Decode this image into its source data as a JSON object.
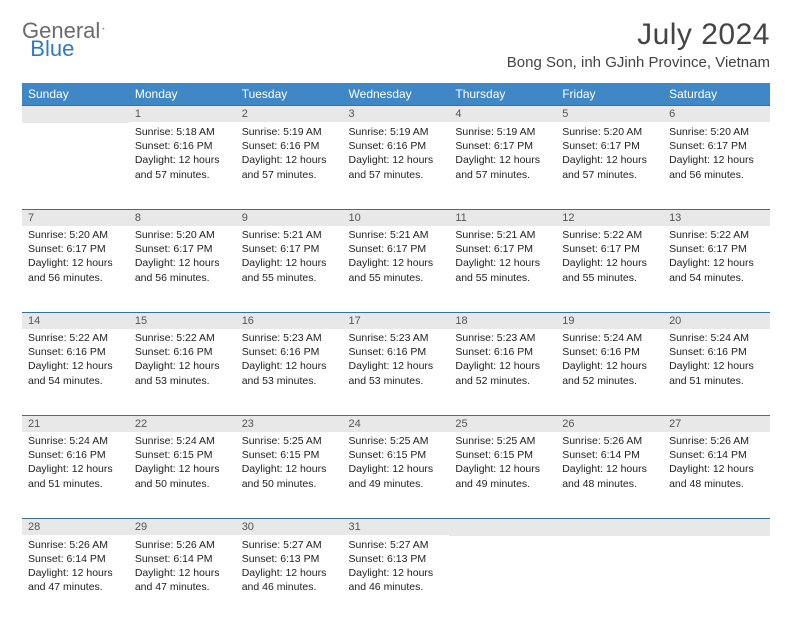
{
  "brand": {
    "part1": "General",
    "part2": "Blue"
  },
  "title": "July 2024",
  "location": "Bong Son, inh GJinh Province, Vietnam",
  "colors": {
    "header_bg": "#3f88c5",
    "header_fg": "#ffffff",
    "row_divider": "#3b6fa0",
    "daynum_bg": "#e8e8e8",
    "daynum_fg": "#555555",
    "text": "#222222",
    "title_fg": "#444444",
    "logo_gray": "#6b6b6b",
    "logo_blue": "#2f7bbf"
  },
  "weekdays": [
    "Sunday",
    "Monday",
    "Tuesday",
    "Wednesday",
    "Thursday",
    "Friday",
    "Saturday"
  ],
  "first_weekday_index": 1,
  "days_in_month": 31,
  "days": {
    "1": {
      "sunrise": "5:18 AM",
      "sunset": "6:16 PM",
      "daylight": "12 hours and 57 minutes."
    },
    "2": {
      "sunrise": "5:19 AM",
      "sunset": "6:16 PM",
      "daylight": "12 hours and 57 minutes."
    },
    "3": {
      "sunrise": "5:19 AM",
      "sunset": "6:16 PM",
      "daylight": "12 hours and 57 minutes."
    },
    "4": {
      "sunrise": "5:19 AM",
      "sunset": "6:17 PM",
      "daylight": "12 hours and 57 minutes."
    },
    "5": {
      "sunrise": "5:20 AM",
      "sunset": "6:17 PM",
      "daylight": "12 hours and 57 minutes."
    },
    "6": {
      "sunrise": "5:20 AM",
      "sunset": "6:17 PM",
      "daylight": "12 hours and 56 minutes."
    },
    "7": {
      "sunrise": "5:20 AM",
      "sunset": "6:17 PM",
      "daylight": "12 hours and 56 minutes."
    },
    "8": {
      "sunrise": "5:20 AM",
      "sunset": "6:17 PM",
      "daylight": "12 hours and 56 minutes."
    },
    "9": {
      "sunrise": "5:21 AM",
      "sunset": "6:17 PM",
      "daylight": "12 hours and 55 minutes."
    },
    "10": {
      "sunrise": "5:21 AM",
      "sunset": "6:17 PM",
      "daylight": "12 hours and 55 minutes."
    },
    "11": {
      "sunrise": "5:21 AM",
      "sunset": "6:17 PM",
      "daylight": "12 hours and 55 minutes."
    },
    "12": {
      "sunrise": "5:22 AM",
      "sunset": "6:17 PM",
      "daylight": "12 hours and 55 minutes."
    },
    "13": {
      "sunrise": "5:22 AM",
      "sunset": "6:17 PM",
      "daylight": "12 hours and 54 minutes."
    },
    "14": {
      "sunrise": "5:22 AM",
      "sunset": "6:16 PM",
      "daylight": "12 hours and 54 minutes."
    },
    "15": {
      "sunrise": "5:22 AM",
      "sunset": "6:16 PM",
      "daylight": "12 hours and 53 minutes."
    },
    "16": {
      "sunrise": "5:23 AM",
      "sunset": "6:16 PM",
      "daylight": "12 hours and 53 minutes."
    },
    "17": {
      "sunrise": "5:23 AM",
      "sunset": "6:16 PM",
      "daylight": "12 hours and 53 minutes."
    },
    "18": {
      "sunrise": "5:23 AM",
      "sunset": "6:16 PM",
      "daylight": "12 hours and 52 minutes."
    },
    "19": {
      "sunrise": "5:24 AM",
      "sunset": "6:16 PM",
      "daylight": "12 hours and 52 minutes."
    },
    "20": {
      "sunrise": "5:24 AM",
      "sunset": "6:16 PM",
      "daylight": "12 hours and 51 minutes."
    },
    "21": {
      "sunrise": "5:24 AM",
      "sunset": "6:16 PM",
      "daylight": "12 hours and 51 minutes."
    },
    "22": {
      "sunrise": "5:24 AM",
      "sunset": "6:15 PM",
      "daylight": "12 hours and 50 minutes."
    },
    "23": {
      "sunrise": "5:25 AM",
      "sunset": "6:15 PM",
      "daylight": "12 hours and 50 minutes."
    },
    "24": {
      "sunrise": "5:25 AM",
      "sunset": "6:15 PM",
      "daylight": "12 hours and 49 minutes."
    },
    "25": {
      "sunrise": "5:25 AM",
      "sunset": "6:15 PM",
      "daylight": "12 hours and 49 minutes."
    },
    "26": {
      "sunrise": "5:26 AM",
      "sunset": "6:14 PM",
      "daylight": "12 hours and 48 minutes."
    },
    "27": {
      "sunrise": "5:26 AM",
      "sunset": "6:14 PM",
      "daylight": "12 hours and 48 minutes."
    },
    "28": {
      "sunrise": "5:26 AM",
      "sunset": "6:14 PM",
      "daylight": "12 hours and 47 minutes."
    },
    "29": {
      "sunrise": "5:26 AM",
      "sunset": "6:14 PM",
      "daylight": "12 hours and 47 minutes."
    },
    "30": {
      "sunrise": "5:27 AM",
      "sunset": "6:13 PM",
      "daylight": "12 hours and 46 minutes."
    },
    "31": {
      "sunrise": "5:27 AM",
      "sunset": "6:13 PM",
      "daylight": "12 hours and 46 minutes."
    }
  },
  "labels": {
    "sunrise": "Sunrise:",
    "sunset": "Sunset:",
    "daylight": "Daylight:"
  }
}
